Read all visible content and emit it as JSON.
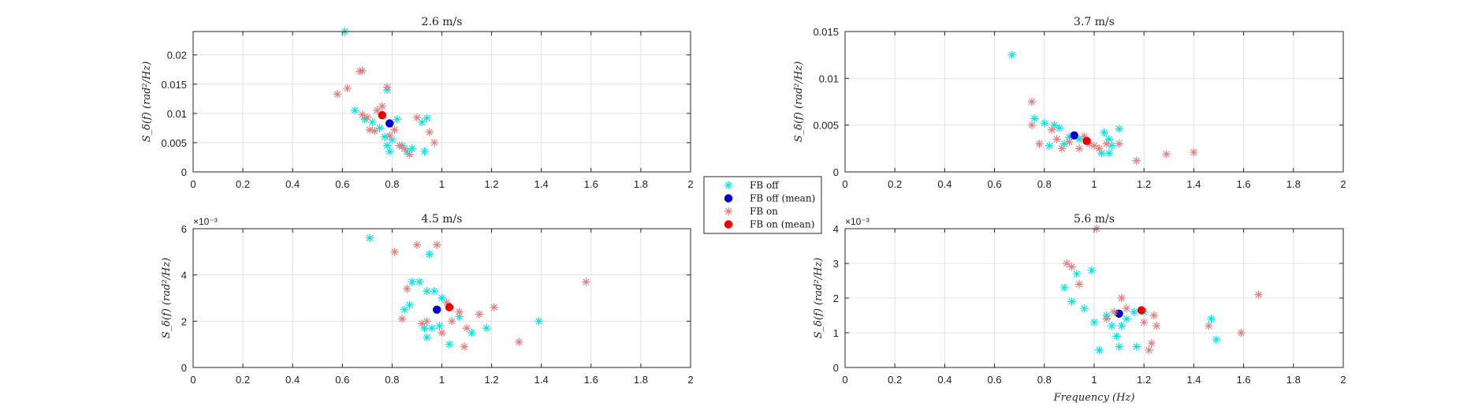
{
  "legend": {
    "entries": [
      {
        "label": "FB off",
        "marker": "asterisk",
        "color": "#00E5E5"
      },
      {
        "label": "FB off (mean)",
        "marker": "dot",
        "color": "#0000CC"
      },
      {
        "label": "FB on",
        "marker": "asterisk",
        "color": "#E08080"
      },
      {
        "label": "FB on (mean)",
        "marker": "dot",
        "color": "#EE0000"
      }
    ]
  },
  "chart_data": [
    {
      "type": "scatter",
      "title": "2.6 m/s",
      "xlabel": "",
      "ylabel": "S_δ(f) (rad²/Hz)",
      "xlim": [
        0,
        2
      ],
      "ylim": [
        0,
        0.024
      ],
      "xticks": [
        0,
        0.2,
        0.4,
        0.6,
        0.8,
        1,
        1.2,
        1.4,
        1.6,
        1.8,
        2
      ],
      "xtick_labels": [
        "0",
        "0.2",
        "0.4",
        "0.6",
        "0.8",
        "1",
        "1.2",
        "1.4",
        "1.6",
        "1.8",
        "2"
      ],
      "yticks": [
        0,
        0.005,
        0.01,
        0.015,
        0.02
      ],
      "ytick_labels": [
        "0",
        "0.005",
        "0.01",
        "0.015",
        "0.02"
      ],
      "exponent": "",
      "grid": true,
      "series": [
        {
          "name": "FB off",
          "marker": "asterisk",
          "color": "#00E5E5",
          "points": [
            [
              0.61,
              0.024
            ],
            [
              0.78,
              0.014
            ],
            [
              0.65,
              0.0105
            ],
            [
              0.69,
              0.009
            ],
            [
              0.72,
              0.0085
            ],
            [
              0.75,
              0.0075
            ],
            [
              0.77,
              0.006
            ],
            [
              0.78,
              0.0045
            ],
            [
              0.79,
              0.0035
            ],
            [
              0.8,
              0.0055
            ],
            [
              0.82,
              0.009
            ],
            [
              0.84,
              0.0045
            ],
            [
              0.86,
              0.0035
            ],
            [
              0.88,
              0.004
            ],
            [
              0.92,
              0.0085
            ],
            [
              0.94,
              0.0092
            ],
            [
              0.93,
              0.0035
            ]
          ]
        },
        {
          "name": "FB off (mean)",
          "marker": "dot",
          "color": "#0000CC",
          "points": [
            [
              0.79,
              0.0083
            ]
          ]
        },
        {
          "name": "FB on",
          "marker": "asterisk",
          "color": "#E08080",
          "points": [
            [
              0.58,
              0.0133
            ],
            [
              0.62,
              0.0143
            ],
            [
              0.67,
              0.0172
            ],
            [
              0.68,
              0.0173
            ],
            [
              0.68,
              0.0098
            ],
            [
              0.7,
              0.0093
            ],
            [
              0.71,
              0.0072
            ],
            [
              0.73,
              0.007
            ],
            [
              0.74,
              0.0105
            ],
            [
              0.76,
              0.0112
            ],
            [
              0.78,
              0.0145
            ],
            [
              0.79,
              0.0062
            ],
            [
              0.81,
              0.0072
            ],
            [
              0.83,
              0.0045
            ],
            [
              0.85,
              0.004
            ],
            [
              0.87,
              0.003
            ],
            [
              0.9,
              0.0093
            ],
            [
              0.95,
              0.0068
            ],
            [
              0.97,
              0.005
            ]
          ]
        },
        {
          "name": "FB on (mean)",
          "marker": "dot",
          "color": "#EE0000",
          "points": [
            [
              0.76,
              0.0097
            ]
          ]
        }
      ]
    },
    {
      "type": "scatter",
      "title": "3.7 m/s",
      "xlabel": "",
      "ylabel": "S_δ(f) (rad²/Hz)",
      "xlim": [
        0,
        2
      ],
      "ylim": [
        0,
        0.015
      ],
      "xticks": [
        0,
        0.2,
        0.4,
        0.6,
        0.8,
        1,
        1.2,
        1.4,
        1.6,
        1.8,
        2
      ],
      "xtick_labels": [
        "0",
        "0.2",
        "0.4",
        "0.6",
        "0.8",
        "1",
        "1.2",
        "1.4",
        "1.6",
        "1.8",
        "2"
      ],
      "yticks": [
        0,
        0.005,
        0.01,
        0.015
      ],
      "ytick_labels": [
        "0",
        "0.005",
        "0.01",
        "0.015"
      ],
      "exponent": "",
      "grid": true,
      "series": [
        {
          "name": "FB off",
          "marker": "asterisk",
          "color": "#00E5E5",
          "points": [
            [
              0.67,
              0.0125
            ],
            [
              0.76,
              0.0057
            ],
            [
              0.8,
              0.0052
            ],
            [
              0.84,
              0.005
            ],
            [
              0.86,
              0.0047
            ],
            [
              0.82,
              0.0028
            ],
            [
              0.88,
              0.003
            ],
            [
              0.9,
              0.0037
            ],
            [
              0.94,
              0.0035
            ],
            [
              1.04,
              0.0042
            ],
            [
              1.06,
              0.0035
            ],
            [
              1.03,
              0.002
            ],
            [
              1.07,
              0.0028
            ],
            [
              1.1,
              0.0046
            ],
            [
              1.06,
              0.002
            ]
          ]
        },
        {
          "name": "FB off (mean)",
          "marker": "dot",
          "color": "#0000CC",
          "points": [
            [
              0.92,
              0.0039
            ]
          ]
        },
        {
          "name": "FB on",
          "marker": "asterisk",
          "color": "#E08080",
          "points": [
            [
              0.75,
              0.0075
            ],
            [
              0.75,
              0.005
            ],
            [
              0.78,
              0.003
            ],
            [
              0.83,
              0.0045
            ],
            [
              0.85,
              0.0035
            ],
            [
              0.87,
              0.0025
            ],
            [
              0.9,
              0.0032
            ],
            [
              0.94,
              0.0025
            ],
            [
              0.96,
              0.0038
            ],
            [
              0.98,
              0.003
            ],
            [
              1.0,
              0.0028
            ],
            [
              1.02,
              0.0025
            ],
            [
              1.05,
              0.003
            ],
            [
              1.1,
              0.003
            ],
            [
              1.17,
              0.0012
            ],
            [
              1.29,
              0.0019
            ],
            [
              1.4,
              0.0021
            ]
          ]
        },
        {
          "name": "FB on (mean)",
          "marker": "dot",
          "color": "#EE0000",
          "points": [
            [
              0.97,
              0.0033
            ]
          ]
        }
      ]
    },
    {
      "type": "scatter",
      "title": "4.5 m/s",
      "xlabel": "",
      "ylabel": "S_δ(f) (rad²/Hz)",
      "xlim": [
        0,
        2
      ],
      "ylim": [
        0,
        0.006
      ],
      "xticks": [
        0,
        0.2,
        0.4,
        0.6,
        0.8,
        1,
        1.2,
        1.4,
        1.6,
        1.8,
        2
      ],
      "xtick_labels": [
        "0",
        "0.2",
        "0.4",
        "0.6",
        "0.8",
        "1",
        "1.2",
        "1.4",
        "1.6",
        "1.8",
        "2"
      ],
      "yticks": [
        0,
        0.002,
        0.004,
        0.006
      ],
      "ytick_labels": [
        "0",
        "2",
        "4",
        "6"
      ],
      "exponent": "×10⁻³",
      "grid": true,
      "series": [
        {
          "name": "FB off",
          "marker": "asterisk",
          "color": "#00E5E5",
          "points": [
            [
              0.71,
              0.0056
            ],
            [
              0.85,
              0.0025
            ],
            [
              0.87,
              0.0027
            ],
            [
              0.88,
              0.0037
            ],
            [
              0.91,
              0.0037
            ],
            [
              0.94,
              0.0033
            ],
            [
              0.95,
              0.0049
            ],
            [
              0.97,
              0.0033
            ],
            [
              0.93,
              0.0017
            ],
            [
              0.94,
              0.0013
            ],
            [
              0.96,
              0.0017
            ],
            [
              0.99,
              0.0018
            ],
            [
              1.03,
              0.001
            ],
            [
              1.07,
              0.0022
            ],
            [
              1.12,
              0.0015
            ],
            [
              1.18,
              0.0017
            ],
            [
              1.39,
              0.002
            ],
            [
              1.0,
              0.003
            ]
          ]
        },
        {
          "name": "FB off (mean)",
          "marker": "dot",
          "color": "#0000CC",
          "points": [
            [
              0.98,
              0.0025
            ]
          ]
        },
        {
          "name": "FB on",
          "marker": "asterisk",
          "color": "#E08080",
          "points": [
            [
              0.81,
              0.005
            ],
            [
              0.84,
              0.0021
            ],
            [
              0.86,
              0.0034
            ],
            [
              0.9,
              0.0053
            ],
            [
              0.92,
              0.0019
            ],
            [
              0.94,
              0.002
            ],
            [
              0.98,
              0.0053
            ],
            [
              1.0,
              0.0015
            ],
            [
              1.02,
              0.0028
            ],
            [
              1.04,
              0.002
            ],
            [
              1.07,
              0.0024
            ],
            [
              1.09,
              0.0009
            ],
            [
              1.1,
              0.0017
            ],
            [
              1.15,
              0.0023
            ],
            [
              1.21,
              0.0026
            ],
            [
              1.31,
              0.0011
            ],
            [
              1.58,
              0.0037
            ]
          ]
        },
        {
          "name": "FB on (mean)",
          "marker": "dot",
          "color": "#EE0000",
          "points": [
            [
              1.03,
              0.0026
            ]
          ]
        }
      ]
    },
    {
      "type": "scatter",
      "title": "5.6 m/s",
      "xlabel": "Frequency (Hz)",
      "ylabel": "S_δ(f) (rad²/Hz)",
      "xlim": [
        0,
        2
      ],
      "ylim": [
        0,
        0.004
      ],
      "xticks": [
        0,
        0.2,
        0.4,
        0.6,
        0.8,
        1,
        1.2,
        1.4,
        1.6,
        1.8,
        2
      ],
      "xtick_labels": [
        "0",
        "0.2",
        "0.4",
        "0.6",
        "0.8",
        "1",
        "1.2",
        "1.4",
        "1.6",
        "1.8",
        "2"
      ],
      "yticks": [
        0,
        0.001,
        0.002,
        0.003,
        0.004
      ],
      "ytick_labels": [
        "0",
        "1",
        "2",
        "3",
        "4"
      ],
      "exponent": "×10⁻³",
      "grid": true,
      "series": [
        {
          "name": "FB off",
          "marker": "asterisk",
          "color": "#00E5E5",
          "points": [
            [
              0.88,
              0.0023
            ],
            [
              0.91,
              0.0019
            ],
            [
              0.93,
              0.0027
            ],
            [
              0.96,
              0.0017
            ],
            [
              0.99,
              0.0028
            ],
            [
              1.0,
              0.0013
            ],
            [
              1.02,
              0.0005
            ],
            [
              1.05,
              0.0015
            ],
            [
              1.07,
              0.0012
            ],
            [
              1.09,
              0.0009
            ],
            [
              1.1,
              0.0006
            ],
            [
              1.11,
              0.0012
            ],
            [
              1.13,
              0.0014
            ],
            [
              1.16,
              0.0016
            ],
            [
              1.17,
              0.0006
            ],
            [
              1.2,
              0.0016
            ],
            [
              1.47,
              0.0014
            ],
            [
              1.49,
              0.0008
            ]
          ]
        },
        {
          "name": "FB off (mean)",
          "marker": "dot",
          "color": "#0000CC",
          "points": [
            [
              1.1,
              0.00155
            ]
          ]
        },
        {
          "name": "FB on",
          "marker": "asterisk",
          "color": "#E08080",
          "points": [
            [
              0.89,
              0.003
            ],
            [
              0.91,
              0.0029
            ],
            [
              0.94,
              0.0024
            ],
            [
              1.01,
              0.004
            ],
            [
              1.05,
              0.0014
            ],
            [
              1.08,
              0.0016
            ],
            [
              1.11,
              0.002
            ],
            [
              1.13,
              0.0017
            ],
            [
              1.2,
              0.0013
            ],
            [
              1.22,
              0.0005
            ],
            [
              1.23,
              0.0007
            ],
            [
              1.24,
              0.0015
            ],
            [
              1.25,
              0.0012
            ],
            [
              1.46,
              0.0012
            ],
            [
              1.59,
              0.001
            ],
            [
              1.66,
              0.0021
            ]
          ]
        },
        {
          "name": "FB on (mean)",
          "marker": "dot",
          "color": "#EE0000",
          "points": [
            [
              1.19,
              0.00165
            ]
          ]
        }
      ]
    }
  ]
}
